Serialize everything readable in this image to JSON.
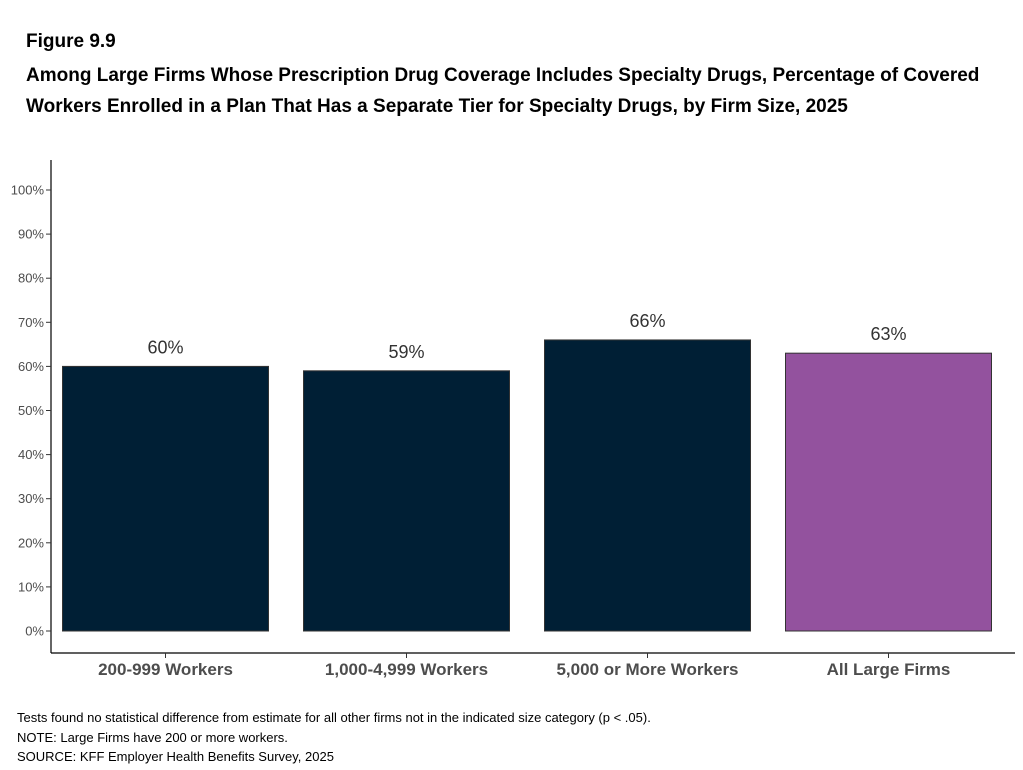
{
  "figure_label": "Figure 9.9",
  "chart_data": {
    "type": "bar",
    "title": "Among Large Firms Whose Prescription Drug Coverage Includes Specialty Drugs, Percentage of Covered Workers Enrolled in a Plan That Has a Separate Tier for Specialty Drugs, by Firm Size, 2025",
    "categories": [
      "200-999 Workers",
      "1,000-4,999 Workers",
      "5,000 or More Workers",
      "All Large Firms"
    ],
    "values": [
      60,
      59,
      66,
      63
    ],
    "data_labels": [
      "60%",
      "59%",
      "66%",
      "63%"
    ],
    "bar_colors": [
      "#001f35",
      "#001f35",
      "#001f35",
      "#93529e"
    ],
    "ylim": [
      0,
      100
    ],
    "y_ticks": [
      0,
      10,
      20,
      30,
      40,
      50,
      60,
      70,
      80,
      90,
      100
    ],
    "y_tick_labels": [
      "0%",
      "10%",
      "20%",
      "30%",
      "40%",
      "50%",
      "60%",
      "70%",
      "80%",
      "90%",
      "100%"
    ],
    "xlabel": "",
    "ylabel": "",
    "grid": false,
    "legend": "none"
  },
  "notes": [
    "Tests found no statistical difference from estimate for all other firms not in the indicated size category (p < .05).",
    "NOTE: Large Firms have 200 or more workers.",
    "SOURCE: KFF Employer Health Benefits Survey, 2025"
  ]
}
